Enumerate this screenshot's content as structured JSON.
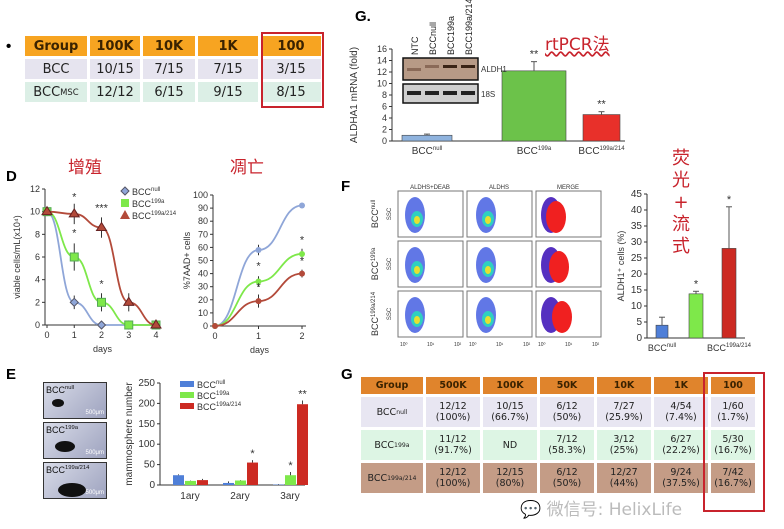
{
  "panel_labels": {
    "top_bullet": "•",
    "g_top": "G.",
    "d": "D",
    "e": "E",
    "f": "F",
    "g_bottom": "G"
  },
  "annotations": {
    "rtpcr": "rtPCR法",
    "proliferation": "增殖",
    "apoptosis": "凋亡",
    "fluorescence_flow": [
      "荧",
      "光",
      "+",
      "流",
      "式"
    ]
  },
  "watermark": "微信号: HelixLife",
  "colors": {
    "null": "#8fa6d8",
    "199a": "#7ee84a",
    "214": "#b34a3a",
    "highlight_box": "#c8232c",
    "header_orange": "#f7a421"
  },
  "table_top": {
    "headers": [
      "Group",
      "100K",
      "10K",
      "1K",
      "100"
    ],
    "rows": [
      {
        "group": "BCC",
        "sup": "",
        "values": [
          "10/15",
          "7/15",
          "7/15",
          "3/15"
        ]
      },
      {
        "group": "BCC",
        "sup": "MSC",
        "values": [
          "12/12",
          "6/15",
          "9/15",
          "8/15"
        ]
      }
    ]
  },
  "table_bottom": {
    "headers": [
      "Group",
      "500K",
      "100K",
      "50K",
      "10K",
      "1K",
      "100"
    ],
    "rows": [
      {
        "group": "BCC",
        "sup": "null",
        "values": [
          "12/12\n(100%)",
          "10/15\n(66.7%)",
          "6/12\n(50%)",
          "7/27\n(25.9%)",
          "4/54\n(7.4%)",
          "1/60\n(1.7%)"
        ]
      },
      {
        "group": "BCC",
        "sup": "199a",
        "values": [
          "11/12\n(91.7%)",
          "ND",
          "7/12\n(58.3%)",
          "3/12\n(25%)",
          "6/27\n(22.2%)",
          "5/30\n(16.7%)"
        ]
      },
      {
        "group": "BCC",
        "sup": "199a/214",
        "values": [
          "12/12\n(100%)",
          "12/15\n(80%)",
          "6/12\n(50%)",
          "12/27\n(44%)",
          "9/24\n(37.5%)",
          "7/42\n(16.7%)"
        ]
      }
    ]
  },
  "blot": {
    "lanes": [
      "NTC",
      "BCCnull",
      "BCC199a",
      "BCC199a/214"
    ],
    "bands": [
      "ALDH1",
      "18S"
    ]
  },
  "chart_data": [
    {
      "id": "rtpcr",
      "type": "bar",
      "ylabel": "ALDHA1 mRNA (fold)",
      "ylim": [
        0,
        16
      ],
      "yticks": [
        0,
        2,
        4,
        6,
        8,
        10,
        12,
        14,
        16
      ],
      "categories": [
        {
          "base": "BCC",
          "sup": "null"
        },
        {
          "base": "BCC",
          "sup": "199a"
        },
        {
          "base": "BCC",
          "sup": "199a/214"
        }
      ],
      "values": [
        1,
        12.2,
        4.6
      ],
      "errors": [
        0.2,
        1.6,
        0.5
      ],
      "significance": [
        "",
        "**",
        "**"
      ],
      "colors": [
        "#8fb3de",
        "#6cc24a",
        "#e8302a"
      ]
    },
    {
      "id": "viable",
      "type": "line",
      "xlabel": "days",
      "ylabel": "viable cells/mL(x10⁴)",
      "xlim": [
        0,
        4
      ],
      "ylim": [
        0,
        12
      ],
      "xticks": [
        0,
        1,
        2,
        3,
        4
      ],
      "yticks": [
        0,
        2,
        4,
        6,
        8,
        10,
        12
      ],
      "x": [
        0,
        1,
        2,
        3,
        4
      ],
      "series": [
        {
          "name": {
            "base": "BCC",
            "sup": "null"
          },
          "values": [
            10,
            2,
            0,
            0,
            0
          ],
          "errors": [
            0,
            0.6,
            0,
            0,
            0
          ],
          "marker": "diamond",
          "color": "#8fa6d8"
        },
        {
          "name": {
            "base": "BCC",
            "sup": "199a"
          },
          "values": [
            10,
            6,
            2,
            0,
            0
          ],
          "errors": [
            0,
            1.2,
            0.8,
            0,
            0
          ],
          "marker": "square",
          "color": "#7ee84a"
        },
        {
          "name": {
            "base": "BCC",
            "sup": "199a/214"
          },
          "values": [
            10,
            9.8,
            8.6,
            2,
            0
          ],
          "errors": [
            0,
            0.9,
            0.9,
            0.8,
            0
          ],
          "marker": "triangle",
          "color": "#b34a3a"
        }
      ],
      "significance": [
        {
          "x": 1,
          "y": 11,
          "text": "*"
        },
        {
          "x": 1,
          "y": 7.8,
          "text": "*"
        },
        {
          "x": 2,
          "y": 10,
          "text": "***"
        },
        {
          "x": 2,
          "y": 3.3,
          "text": "*"
        }
      ]
    },
    {
      "id": "apoptosis",
      "type": "line",
      "xlabel": "days",
      "ylabel": "%7AAD+ cells",
      "xlim": [
        0,
        2
      ],
      "ylim": [
        0,
        100
      ],
      "xticks": [
        0,
        1,
        2
      ],
      "yticks": [
        0,
        10,
        20,
        30,
        40,
        50,
        60,
        70,
        80,
        90,
        100
      ],
      "x": [
        0,
        1,
        2
      ],
      "series": [
        {
          "values": [
            0,
            58,
            92
          ],
          "errors": [
            0,
            4,
            0
          ],
          "color": "#8fa6d8"
        },
        {
          "values": [
            0,
            34,
            55
          ],
          "errors": [
            0,
            4,
            4
          ],
          "color": "#7ee84a"
        },
        {
          "values": [
            0,
            19,
            40
          ],
          "errors": [
            0,
            5,
            3
          ],
          "color": "#b34a3a"
        }
      ],
      "significance": [
        {
          "x": 1,
          "y": 43,
          "text": "*"
        },
        {
          "x": 1,
          "y": 27,
          "text": "*"
        },
        {
          "x": 2,
          "y": 63,
          "text": "*"
        },
        {
          "x": 2,
          "y": 47,
          "text": "*"
        }
      ]
    },
    {
      "id": "mammosphere",
      "type": "bar",
      "ylabel": "mammosphere number",
      "ylim": [
        0,
        250
      ],
      "yticks": [
        0,
        50,
        100,
        150,
        200,
        250
      ],
      "categories": [
        "1ary",
        "2ary",
        "3ary"
      ],
      "series": [
        {
          "name": {
            "base": "BCC",
            "sup": "null"
          },
          "values": [
            24,
            5,
            1
          ],
          "errors": [
            2,
            4,
            1
          ],
          "color": "#4f7fd8"
        },
        {
          "name": {
            "base": "BCC",
            "sup": "199a"
          },
          "values": [
            10,
            11,
            24
          ],
          "errors": [
            1,
            1,
            8
          ],
          "color": "#7ee84a"
        },
        {
          "name": {
            "base": "BCC",
            "sup": "199a/214"
          },
          "values": [
            12,
            55,
            198
          ],
          "errors": [
            3,
            6,
            9
          ],
          "color": "#cc2a22"
        }
      ],
      "significance": [
        {
          "cat": 1,
          "series": 2,
          "text": "*"
        },
        {
          "cat": 2,
          "series": 1,
          "text": "*"
        },
        {
          "cat": 2,
          "series": 2,
          "text": "**"
        }
      ]
    },
    {
      "id": "aldh_pct",
      "type": "bar",
      "ylabel": "ALDH1⁺ cells (%)",
      "ylim": [
        0,
        45
      ],
      "yticks": [
        0,
        5,
        10,
        15,
        20,
        25,
        30,
        35,
        40,
        45
      ],
      "categories": [
        {
          "base": "BCC",
          "sup": "null"
        },
        {
          "base": "",
          "sup": ""
        },
        {
          "base": "BCC",
          "sup": "199a/214"
        }
      ],
      "values": [
        4,
        13.8,
        28
      ],
      "errors": [
        2.5,
        0.8,
        13
      ],
      "significance": [
        "",
        "*",
        "*"
      ],
      "colors": [
        "#4f7fd8",
        "#7ee84a",
        "#cc2a22"
      ]
    }
  ],
  "flow": {
    "columns": [
      "ALDHS+DEAB",
      "ALDHS",
      "MERGE"
    ],
    "rows": [
      {
        "base": "BCC",
        "sup": "null"
      },
      {
        "base": "BCC",
        "sup": "199a"
      },
      {
        "base": "BCC",
        "sup": "199a/214"
      }
    ],
    "yticks": [
      "0",
      "200",
      "400",
      "600",
      "800"
    ],
    "xticks": [
      "10⁰",
      "10¹",
      "10²"
    ],
    "ylabel": "SSC"
  },
  "images_e": [
    {
      "base": "BCC",
      "sup": "null"
    },
    {
      "base": "BCC",
      "sup": "199a"
    },
    {
      "base": "BCC",
      "sup": "199a/214"
    }
  ],
  "scale_bar": "500μm"
}
